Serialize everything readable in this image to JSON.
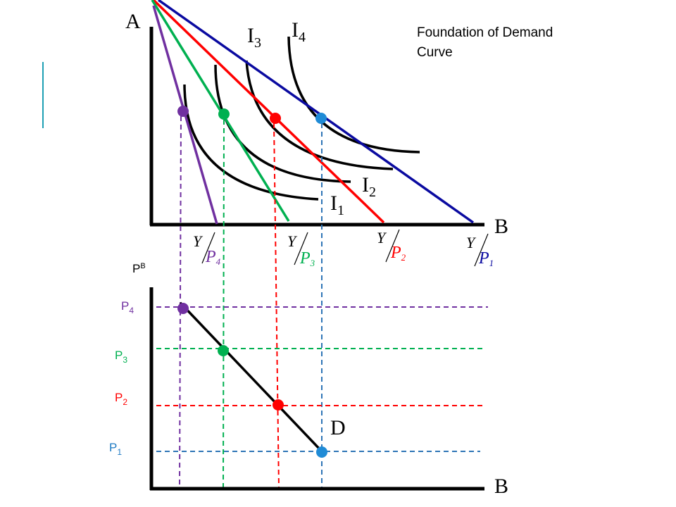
{
  "title_lines": [
    "Foundation of Demand",
    "Curve"
  ],
  "top_axes": {
    "y_label": "A",
    "x_label": "B"
  },
  "bottom_axes": {
    "y_label_main": "P",
    "y_label_sup": "B",
    "x_label": "B"
  },
  "demand_label": "D",
  "indifference_labels": [
    {
      "id": "I1",
      "main": "I",
      "sub": "1"
    },
    {
      "id": "I2",
      "main": "I",
      "sub": "2"
    },
    {
      "id": "I3",
      "main": "I",
      "sub": "3"
    },
    {
      "id": "I4",
      "main": "I",
      "sub": "4"
    }
  ],
  "budget_fraction_numerator": "Y",
  "budget_fraction_denominator_main": "P",
  "colors": {
    "p1": "#0a0aa0",
    "p2": "#ff0000",
    "p3": "#00b050",
    "p4": "#7030a0",
    "p1_dash": "#2e75b6",
    "p1_point": "#1f8bd6",
    "p1_label": "#1f7bc4",
    "axis": "#000000",
    "accent_bar": "#1ea0b4"
  },
  "prices": [
    {
      "id": "P1",
      "main": "P",
      "sub": "1"
    },
    {
      "id": "P2",
      "main": "P",
      "sub": "2"
    },
    {
      "id": "P3",
      "main": "P",
      "sub": "3"
    },
    {
      "id": "P4",
      "main": "P",
      "sub": "4"
    }
  ]
}
